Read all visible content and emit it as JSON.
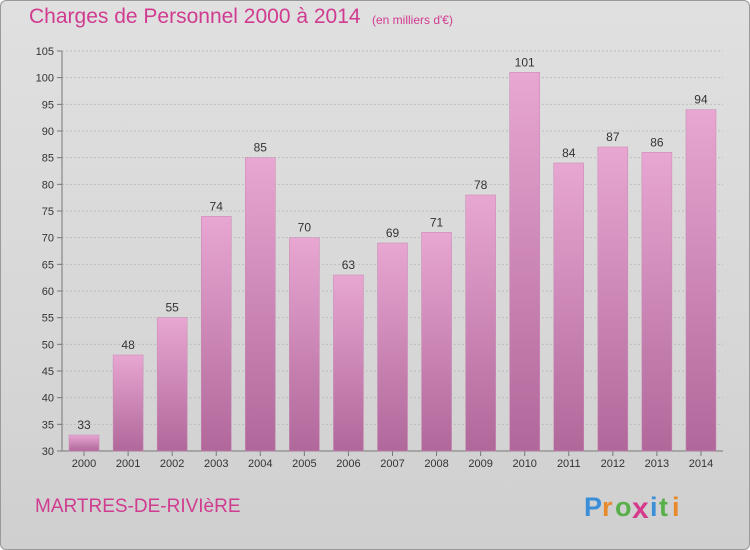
{
  "header": {
    "title": "Charges de Personnel 2000 à 2014",
    "unit_note": "(en milliers d'€)"
  },
  "footer": {
    "commune": "MARTRES-DE-RIVIèRE",
    "logo_text": "Proxiti"
  },
  "colors": {
    "accent": "#d03c90",
    "bar_top": "#e8a6d2",
    "bar_bottom": "#b0689a"
  },
  "chart_data": {
    "type": "bar",
    "categories": [
      "2000",
      "2001",
      "2002",
      "2003",
      "2004",
      "2005",
      "2006",
      "2007",
      "2008",
      "2009",
      "2010",
      "2011",
      "2012",
      "2013",
      "2014"
    ],
    "values": [
      33,
      48,
      55,
      74,
      85,
      70,
      63,
      69,
      71,
      78,
      101,
      84,
      87,
      86,
      94
    ],
    "ylim": [
      30,
      105
    ],
    "yticks": [
      30,
      35,
      40,
      45,
      50,
      55,
      60,
      65,
      70,
      75,
      80,
      85,
      90,
      95,
      100,
      105
    ],
    "grid": true,
    "data_labels": true
  }
}
